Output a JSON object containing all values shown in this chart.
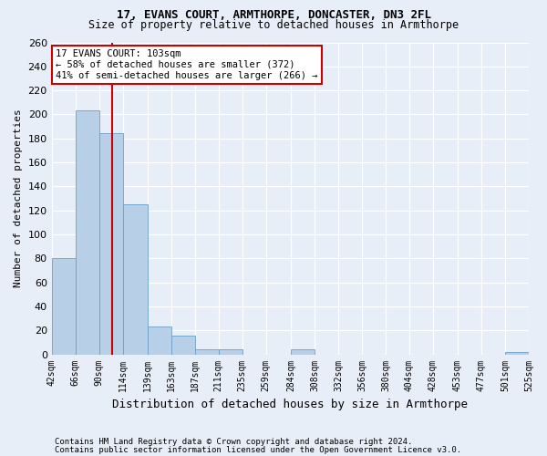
{
  "title1": "17, EVANS COURT, ARMTHORPE, DONCASTER, DN3 2FL",
  "title2": "Size of property relative to detached houses in Armthorpe",
  "xlabel": "Distribution of detached houses by size in Armthorpe",
  "ylabel": "Number of detached properties",
  "footnote1": "Contains HM Land Registry data © Crown copyright and database right 2024.",
  "footnote2": "Contains public sector information licensed under the Open Government Licence v3.0.",
  "annotation_line1": "17 EVANS COURT: 103sqm",
  "annotation_line2": "← 58% of detached houses are smaller (372)",
  "annotation_line3": "41% of semi-detached houses are larger (266) →",
  "subject_size": 103,
  "bar_edges": [
    42,
    66,
    90,
    114,
    139,
    163,
    187,
    211,
    235,
    259,
    284,
    308,
    332,
    356,
    380,
    404,
    428,
    453,
    477,
    501,
    525
  ],
  "bar_heights": [
    80,
    203,
    184,
    125,
    23,
    16,
    4,
    4,
    0,
    0,
    4,
    0,
    0,
    0,
    0,
    0,
    0,
    0,
    0,
    2,
    0
  ],
  "bar_color": "#b8cfe8",
  "bar_edge_color": "#6a9fc8",
  "vline_color": "#cc0000",
  "background_color": "#e8eef8",
  "grid_color": "#ffffff",
  "ylim": [
    0,
    260
  ],
  "yticks": [
    0,
    20,
    40,
    60,
    80,
    100,
    120,
    140,
    160,
    180,
    200,
    220,
    240,
    260
  ],
  "annotation_box_facecolor": "#ffffff",
  "annotation_box_edgecolor": "#cc0000",
  "title_fontsize": 9,
  "subtitle_fontsize": 8.5,
  "ylabel_fontsize": 8,
  "xlabel_fontsize": 9,
  "xtick_fontsize": 7,
  "ytick_fontsize": 8,
  "annot_fontsize": 7.5,
  "footnote_fontsize": 6.5
}
